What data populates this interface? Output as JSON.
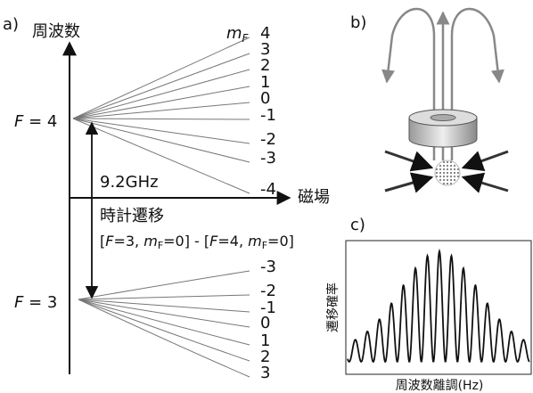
{
  "panel_a": {
    "label": "a)",
    "y_axis_label": "周波数",
    "x_axis_label": "磁場",
    "mf_header": {
      "var": "m",
      "sub": "F"
    },
    "upper_level": {
      "var": "F",
      "rest": " = 4"
    },
    "lower_level": {
      "var": "F",
      "rest": " = 3"
    },
    "upper_mf": [
      "4",
      "3",
      "2",
      "1",
      "0",
      "-1",
      "-2",
      "-3",
      "-4"
    ],
    "lower_mf": [
      "-3",
      "-2",
      "-1",
      "0",
      "1",
      "2",
      "3"
    ],
    "frequency": "9.2GHz",
    "transition_name": "時計遷移",
    "transition": [
      "[",
      "F",
      "=3, ",
      "m",
      "F",
      "=0] - [",
      "F",
      "=4, ",
      "m",
      "F",
      "=0]"
    ]
  },
  "panel_b": {
    "label": "b)"
  },
  "panel_c": {
    "label": "c)",
    "y_axis_label": "遷移確率",
    "x_axis_label": "周波数離調(Hz)"
  }
}
